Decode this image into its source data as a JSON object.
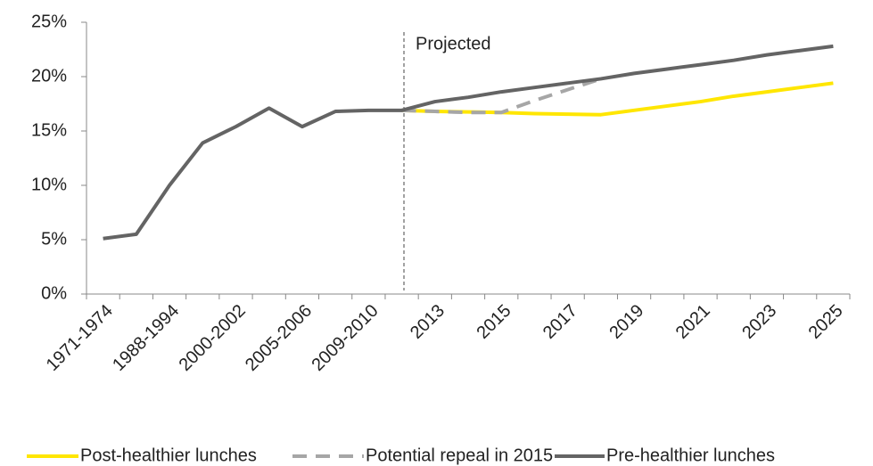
{
  "chart_data": {
    "type": "line",
    "annotation": "Projected",
    "categories": [
      "1971-1974",
      null,
      "1988-1994",
      null,
      "2000-2002",
      null,
      "2005-2006",
      null,
      "2009-2010",
      null,
      "2013",
      null,
      "2015",
      null,
      "2017",
      null,
      "2019",
      null,
      "2021",
      null,
      "2023",
      null,
      "2025"
    ],
    "series": [
      {
        "name": "Post-healthier lunches",
        "color": "#ffe600",
        "dash": false,
        "values": [
          null,
          null,
          null,
          null,
          null,
          null,
          null,
          null,
          null,
          16.9,
          16.8,
          16.75,
          16.7,
          16.6,
          16.55,
          16.5,
          16.9,
          17.3,
          17.7,
          18.2,
          18.6,
          19.0,
          19.4
        ]
      },
      {
        "name": "Potential repeal in 2015",
        "color": "#a6a6a6",
        "dash": true,
        "values": [
          null,
          null,
          null,
          null,
          null,
          null,
          null,
          null,
          null,
          16.9,
          16.8,
          16.7,
          16.7,
          17.8,
          18.8,
          19.8,
          null,
          null,
          null,
          null,
          null,
          null,
          null
        ]
      },
      {
        "name": "Pre-healthier lunches",
        "color": "#646464",
        "dash": false,
        "values": [
          5.1,
          5.5,
          10.0,
          13.9,
          15.4,
          17.1,
          15.4,
          16.8,
          16.9,
          16.9,
          17.7,
          18.1,
          18.6,
          19.0,
          19.4,
          19.8,
          20.3,
          20.7,
          21.1,
          21.5,
          22.0,
          22.4,
          22.8
        ]
      }
    ],
    "ylim": [
      0,
      25
    ],
    "yticks": [
      {
        "value": 0,
        "label": "0%"
      },
      {
        "value": 5,
        "label": "5%"
      },
      {
        "value": 10,
        "label": "10%"
      },
      {
        "value": 15,
        "label": "15%"
      },
      {
        "value": 20,
        "label": "20%"
      },
      {
        "value": 25,
        "label": "25%"
      }
    ],
    "grid": false,
    "legend": "bottom"
  }
}
